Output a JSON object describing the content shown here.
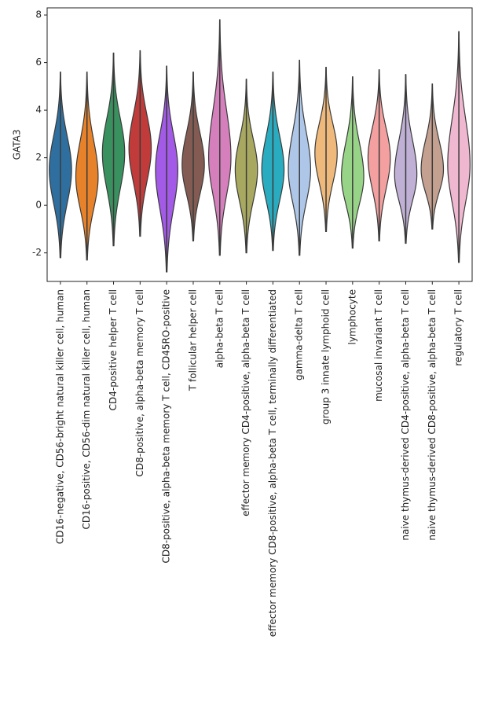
{
  "chart_data": {
    "type": "violin",
    "y_label": "GATA3",
    "categories": [
      "CD16-negative, CD56-bright natural killer cell, human",
      "CD16-positive, CD56-dim natural killer cell, human",
      "CD4-positive helper T cell",
      "CD8-positive, alpha-beta memory T cell",
      "CD8-positive, alpha-beta memory T cell, CD45RO-positive",
      "T follicular helper cell",
      "alpha-beta T cell",
      "effector memory CD4-positive, alpha-beta T cell",
      "effector memory CD8-positive, alpha-beta T cell, terminally differentiated",
      "gamma-delta T cell",
      "group 3 innate lymphoid cell",
      "lymphocyte",
      "mucosal invariant T cell",
      "naive thymus-derived CD4-positive, alpha-beta T cell",
      "naive thymus-derived CD8-positive, alpha-beta T cell",
      "regulatory T cell"
    ],
    "colors": [
      "#2f6f9f",
      "#e8822a",
      "#3a9160",
      "#c23b3b",
      "#a35ae6",
      "#845b53",
      "#d67fbd",
      "#a8a860",
      "#2aacc0",
      "#aec7e8",
      "#f0b97c",
      "#98d488",
      "#f4a0a0",
      "#c0b0d5",
      "#c4a090",
      "#f0b8d0"
    ],
    "min": [
      -2.2,
      -2.3,
      -1.7,
      -1.3,
      -2.8,
      -1.5,
      -2.1,
      -2.0,
      -1.9,
      -2.1,
      -1.1,
      -1.8,
      -1.5,
      -1.6,
      -1.0,
      -2.4
    ],
    "max": [
      5.6,
      5.6,
      6.4,
      6.5,
      5.85,
      5.6,
      7.8,
      5.3,
      5.6,
      6.1,
      5.8,
      5.4,
      5.7,
      5.5,
      5.1,
      7.3
    ],
    "mode": [
      1.5,
      1.2,
      2.2,
      2.4,
      1.5,
      1.7,
      2.0,
      1.5,
      1.5,
      1.5,
      2.2,
      1.2,
      2.0,
      1.3,
      1.5,
      1.7
    ],
    "ylim": [
      -3.2,
      8.3
    ],
    "yticks": [
      -2,
      0,
      2,
      4,
      6,
      8
    ]
  }
}
